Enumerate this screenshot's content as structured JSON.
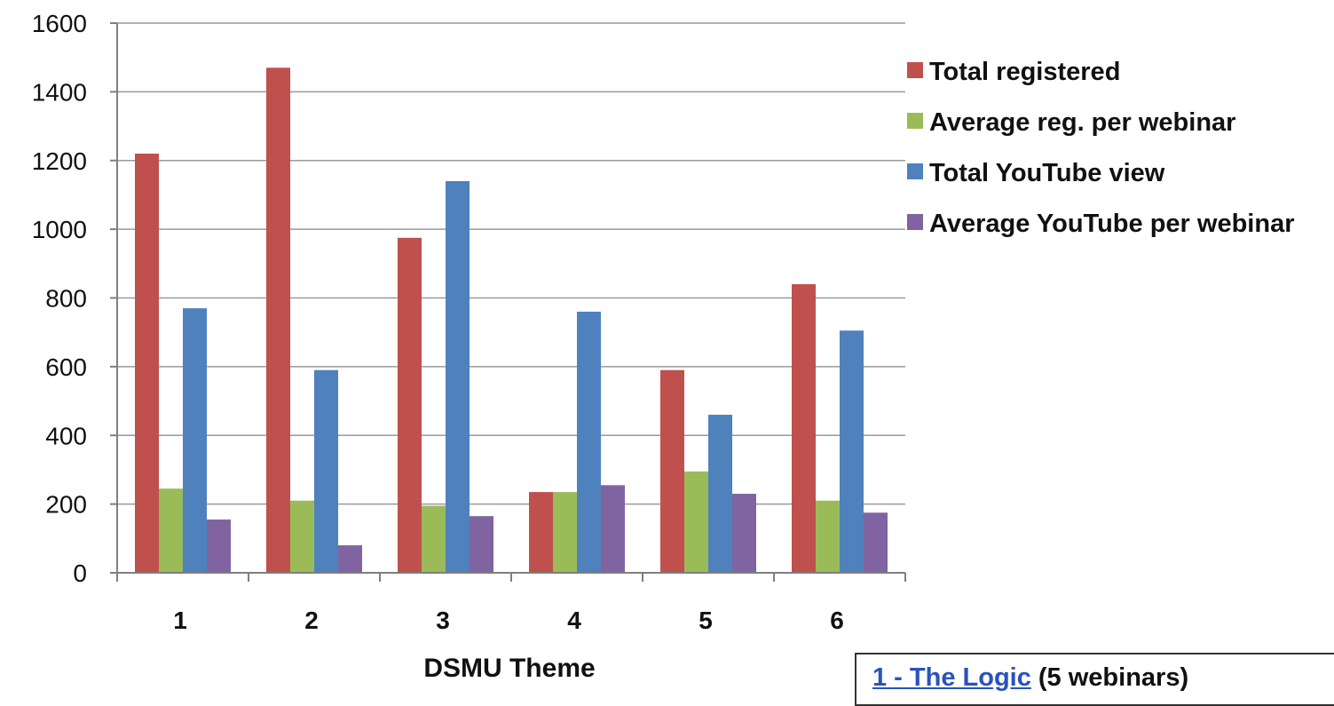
{
  "chart_data": {
    "type": "bar",
    "categories": [
      "1",
      "2",
      "3",
      "4",
      "5",
      "6"
    ],
    "xlabel": "DSMU Theme",
    "ylabel": "",
    "ylim": [
      0,
      1600
    ],
    "yticks": [
      0,
      200,
      400,
      600,
      800,
      1000,
      1200,
      1400,
      1600
    ],
    "grid": true,
    "legend_position": "right",
    "series": [
      {
        "name": "Total registered",
        "color": "#c0504d",
        "values": [
          1220,
          1470,
          975,
          235,
          590,
          840
        ]
      },
      {
        "name": "Average reg. per webinar",
        "color": "#9bbb59",
        "values": [
          245,
          210,
          195,
          235,
          295,
          210
        ]
      },
      {
        "name": "Total YouTube view",
        "color": "#4f81bd",
        "values": [
          770,
          590,
          1140,
          760,
          460,
          705
        ]
      },
      {
        "name": "Average YouTube per webinar",
        "color": "#8064a2",
        "values": [
          155,
          80,
          165,
          255,
          230,
          175
        ]
      }
    ]
  },
  "note_box": {
    "link_text": "1 - The Logic",
    "rest_text": " (5 webinars)"
  }
}
